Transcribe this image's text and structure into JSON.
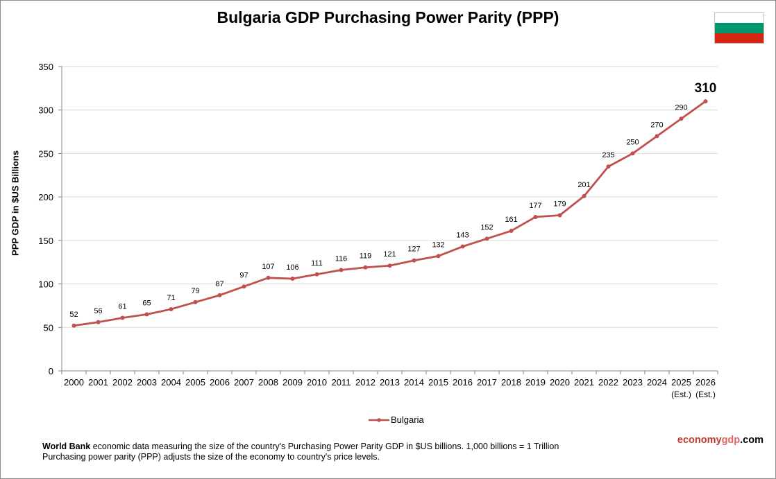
{
  "title": "Bulgaria GDP Purchasing Power Parity (PPP)",
  "ylabel": "PPP GDP in $US Billions",
  "flag": {
    "colors": [
      "#ffffff",
      "#00966e",
      "#d62612"
    ]
  },
  "footnote": {
    "source": "World Bank",
    "line1_rest": " economic data measuring the size of the country's Purchasing Power Parity GDP in $US billions. 1,000 billions = 1 Trillion",
    "line2": "Purchasing power parity (PPP) adjusts the size of the economy to country's price levels."
  },
  "brand": {
    "part1": "economy",
    "part2": "gdp",
    "part3": ".com",
    "color1": "#c0392b",
    "color2": "#e06666",
    "color3": "#000000"
  },
  "chart_data": {
    "type": "line",
    "title": "Bulgaria GDP Purchasing Power Parity (PPP)",
    "xlabel": "",
    "ylabel": "PPP GDP in $US Billions",
    "ylim": [
      0,
      350
    ],
    "yticks": [
      0,
      50,
      100,
      150,
      200,
      250,
      300,
      350
    ],
    "grid": true,
    "legend_position": "bottom",
    "categories": [
      "2000",
      "2001",
      "2002",
      "2003",
      "2004",
      "2005",
      "2006",
      "2007",
      "2008",
      "2009",
      "2010",
      "2011",
      "2012",
      "2013",
      "2014",
      "2015",
      "2016",
      "2017",
      "2018",
      "2019",
      "2020",
      "2021",
      "2022",
      "2023",
      "2024",
      "2025",
      "2026"
    ],
    "category_sublabels": [
      "",
      "",
      "",
      "",
      "",
      "",
      "",
      "",
      "",
      "",
      "",
      "",
      "",
      "",
      "",
      "",
      "",
      "",
      "",
      "",
      "",
      "",
      "",
      "",
      "",
      "(Est.)",
      "(Est.)"
    ],
    "series": [
      {
        "name": "Bulgaria",
        "color": "#c0504d",
        "values": [
          52,
          56,
          61,
          65,
          71,
          79,
          87,
          97,
          107,
          106,
          111,
          116,
          119,
          121,
          127,
          132,
          143,
          152,
          161,
          177,
          179,
          201,
          235,
          250,
          270,
          290,
          310
        ]
      }
    ]
  }
}
